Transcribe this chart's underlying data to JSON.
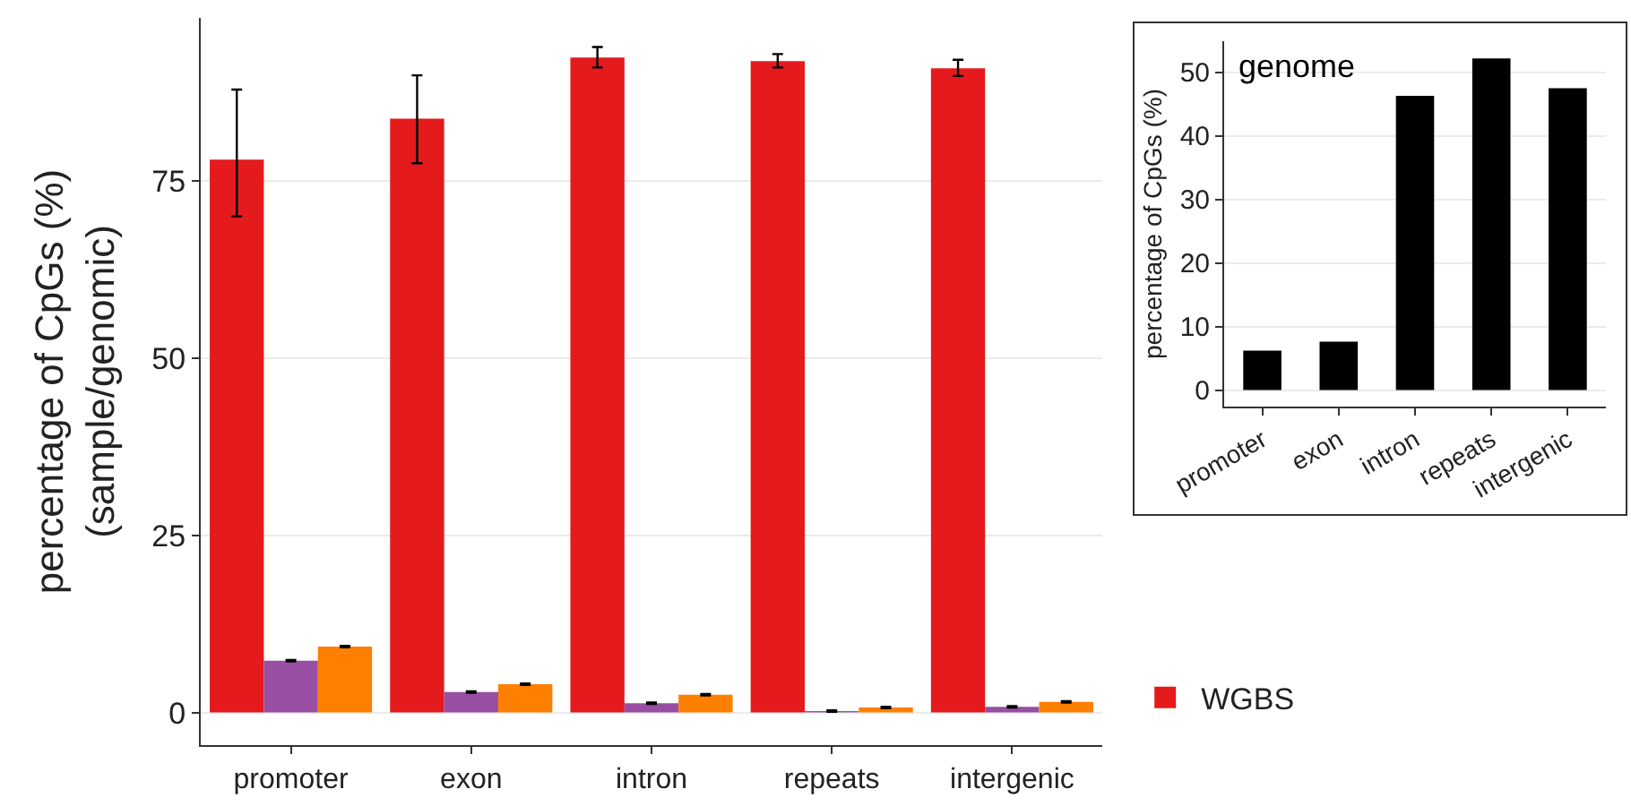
{
  "chart_data": [
    {
      "type": "bar",
      "ylabel": "percentage of CpGs (%)\n(sample/genomic)",
      "categories": [
        "promoter",
        "exon",
        "intron",
        "repeats",
        "intergenic"
      ],
      "series": [
        {
          "name": "WGBS",
          "color": "#e41a1c",
          "values": [
            78.0,
            83.8,
            92.4,
            91.9,
            90.9
          ],
          "errors": [
            [
              70.0,
              87.9
            ],
            [
              77.5,
              89.9
            ],
            [
              91.0,
              93.9
            ],
            [
              91.0,
              92.9
            ],
            [
              89.8,
              92.1
            ]
          ]
        },
        {
          "color": "#984ea3",
          "values": [
            7.3,
            2.9,
            1.3,
            0.2,
            0.8
          ],
          "errors": [
            0.1,
            0.1,
            0.1,
            0.1,
            0.1
          ]
        },
        {
          "color": "#ff7f00",
          "values": [
            9.3,
            4.0,
            2.5,
            0.7,
            1.5
          ],
          "errors": [
            0.1,
            0.1,
            0.1,
            0.1,
            0.1
          ]
        }
      ],
      "ylim": [
        -4.6,
        98
      ],
      "yticks": [
        0,
        25,
        50,
        75
      ],
      "grid": "y",
      "legend": "bottom right"
    },
    {
      "type": "bar",
      "ylabel": "percentage of CpGs (%)",
      "annotations": [
        "genome"
      ],
      "categories": [
        "promoter",
        "exon",
        "intron",
        "repeats",
        "intergenic"
      ],
      "values": [
        6.2,
        7.6,
        46.3,
        52.2,
        47.5
      ],
      "color": "#000000",
      "ylim": [
        -2.6,
        54.9
      ],
      "yticks": [
        0,
        10,
        20,
        30,
        40,
        50
      ],
      "grid": "y",
      "legend": false
    }
  ]
}
